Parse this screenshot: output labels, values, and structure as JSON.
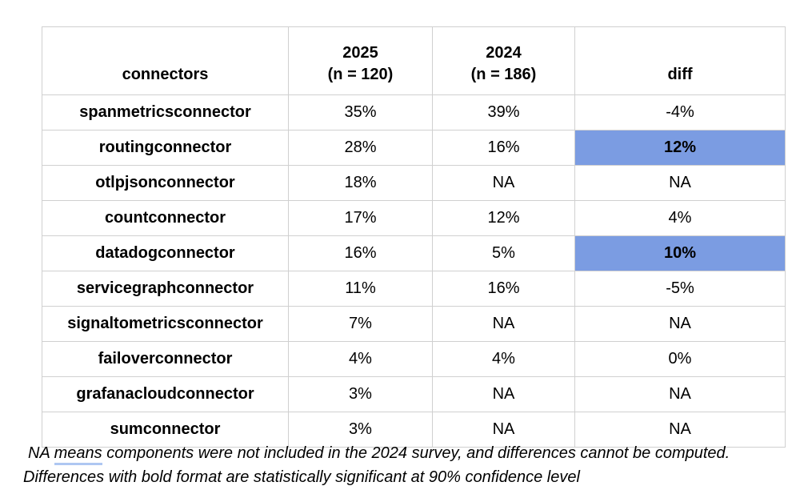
{
  "colors": {
    "highlight_cell": "#7b9ce2",
    "suggestion_underline": "#aec7f2",
    "table_border": "#d0d0d0"
  },
  "table": {
    "header": {
      "connectors": "connectors",
      "col2025_line1": "2025",
      "col2025_line2": "(n = 120)",
      "col2024_line1": "2024",
      "col2024_line2": "(n = 186)",
      "diff": "diff"
    },
    "rows": [
      {
        "name": "spanmetricsconnector",
        "v2025": "35%",
        "v2024": "39%",
        "diff": "-4%",
        "highlight": false
      },
      {
        "name": "routingconnector",
        "v2025": "28%",
        "v2024": "16%",
        "diff": "12%",
        "highlight": true
      },
      {
        "name": "otlpjsonconnector",
        "v2025": "18%",
        "v2024": "NA",
        "diff": "NA",
        "highlight": false
      },
      {
        "name": "countconnector",
        "v2025": "17%",
        "v2024": "12%",
        "diff": "4%",
        "highlight": false
      },
      {
        "name": "datadogconnector",
        "v2025": "16%",
        "v2024": "5%",
        "diff": "10%",
        "highlight": true
      },
      {
        "name": "servicegraphconnector",
        "v2025": "11%",
        "v2024": "16%",
        "diff": "-5%",
        "highlight": false
      },
      {
        "name": "signaltometricsconnector",
        "v2025": "7%",
        "v2024": "NA",
        "diff": "NA",
        "highlight": false
      },
      {
        "name": "failoverconnector",
        "v2025": "4%",
        "v2024": "4%",
        "diff": "0%",
        "highlight": false
      },
      {
        "name": "grafanacloudconnector",
        "v2025": "3%",
        "v2024": "NA",
        "diff": "NA",
        "highlight": false
      },
      {
        "name": "sumconnector",
        "v2025": "3%",
        "v2024": "NA",
        "diff": "NA",
        "highlight": false
      }
    ]
  },
  "footnotes": {
    "line1_prefix": "NA ",
    "line1_underlined": "means",
    "line1_rest": " components were not included in the 2024 survey, and differences cannot be computed.",
    "line2": "Differences with bold format are statistically significant at 90% confidence level"
  },
  "chart_data": {
    "type": "table",
    "title": "",
    "columns": [
      "connectors",
      "2025 (n = 120)",
      "2024 (n = 186)",
      "diff"
    ],
    "categories": [
      "spanmetricsconnector",
      "routingconnector",
      "otlpjsonconnector",
      "countconnector",
      "datadogconnector",
      "servicegraphconnector",
      "signaltometricsconnector",
      "failoverconnector",
      "grafanacloudconnector",
      "sumconnector"
    ],
    "series": [
      {
        "name": "2025 (n = 120)",
        "values_pct": [
          35,
          28,
          18,
          17,
          16,
          11,
          7,
          4,
          3,
          3
        ]
      },
      {
        "name": "2024 (n = 186)",
        "values_pct": [
          39,
          16,
          null,
          12,
          5,
          16,
          null,
          4,
          null,
          null
        ]
      },
      {
        "name": "diff",
        "values_pct": [
          -4,
          12,
          null,
          4,
          10,
          -5,
          null,
          0,
          null,
          null
        ]
      }
    ],
    "statistically_significant_rows": [
      "routingconnector",
      "datadogconnector"
    ],
    "notes": [
      "NA means components were not included in the 2024 survey, and differences cannot be computed.",
      "Differences with bold format are statistically significant at 90% confidence level"
    ]
  }
}
